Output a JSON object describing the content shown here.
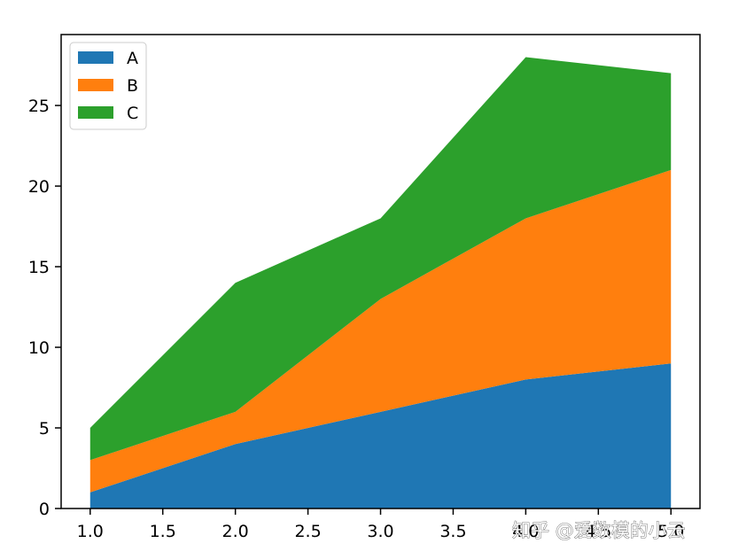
{
  "chart_data": {
    "type": "area",
    "stacked": true,
    "x": [
      1.0,
      2.0,
      3.0,
      4.0,
      5.0
    ],
    "series": [
      {
        "name": "A",
        "values": [
          1,
          4,
          6,
          8,
          9
        ],
        "color": "#1f77b4"
      },
      {
        "name": "B",
        "values": [
          2,
          2,
          7,
          10,
          12
        ],
        "color": "#ff7f0e"
      },
      {
        "name": "C",
        "values": [
          2,
          8,
          5,
          10,
          6
        ],
        "color": "#2ca02c"
      }
    ],
    "xlim": [
      0.8,
      5.2
    ],
    "ylim": [
      0,
      29.4
    ],
    "xticks": [
      "1.0",
      "1.5",
      "2.0",
      "2.5",
      "3.0",
      "3.5",
      "4.0",
      "4.5",
      "5.0"
    ],
    "yticks": [
      "0",
      "5",
      "10",
      "15",
      "20",
      "25"
    ],
    "title": "",
    "xlabel": "",
    "ylabel": "",
    "grid": false,
    "legend_position": "top-left"
  },
  "watermark": "知乎 @爱数模的小云"
}
